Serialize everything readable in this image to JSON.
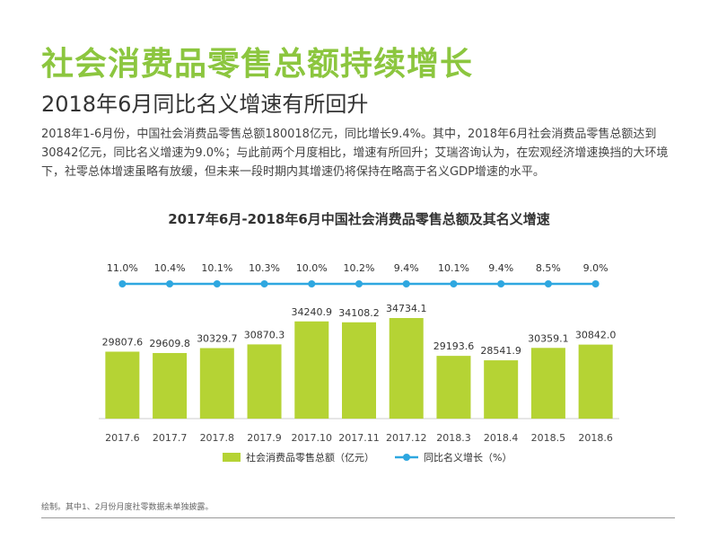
{
  "title": "社会消费品零售总额持续增长",
  "subtitle": "2018年6月同比名义增速有所回升",
  "body_text": "2018年1-6月份，中国社会消费品零售总额180018亿元，同比增长9.4%。其中，2018年6月社会消费品零售总额达到30842亿元，同比名义增速为9.0%；与此前两个月度相比，增速有所回升；艾瑞咨询认为，在宏观经济增速换挡的大环境下，社零总体增速虽略有放缓，但未来一段时期内其增速仍将保持在略高于名义GDP增速的水平。",
  "footnote": "绘制。其中1、2月份月度社零数据未单独披露。",
  "colors": {
    "title": "#8cc63f",
    "bar": "#b5d334",
    "line": "#2ea7e0"
  },
  "chart_data": {
    "type": "bar",
    "title": "2017年6月-2018年6月中国社会消费品零售总额及其名义增速",
    "categories": [
      "2017.6",
      "2017.7",
      "2017.8",
      "2017.9",
      "2017.10",
      "2017.11",
      "2017.12",
      "2018.3",
      "2018.4",
      "2018.5",
      "2018.6"
    ],
    "series": [
      {
        "name": "社会消费品零售总额（亿元）",
        "type": "bar",
        "values": [
          29807.6,
          29609.8,
          30329.7,
          30870.3,
          34240.9,
          34108.2,
          34734.1,
          29193.6,
          28541.9,
          30359.1,
          30842.0
        ],
        "labels": [
          "29807.6",
          "29609.8",
          "30329.7",
          "30870.3",
          "34240.9",
          "34108.2",
          "34734.1",
          "29193.6",
          "28541.9",
          "30359.1",
          "30842.0"
        ]
      },
      {
        "name": "同比名义增长（%）",
        "type": "line",
        "values": [
          11.0,
          10.4,
          10.1,
          10.3,
          10.0,
          10.2,
          9.4,
          10.1,
          9.4,
          8.5,
          9.0
        ],
        "labels": [
          "11.0%",
          "10.4%",
          "10.1%",
          "10.3%",
          "10.0%",
          "10.2%",
          "9.4%",
          "10.1%",
          "9.4%",
          "8.5%",
          "9.0%"
        ]
      }
    ],
    "legend_position": "bottom"
  }
}
